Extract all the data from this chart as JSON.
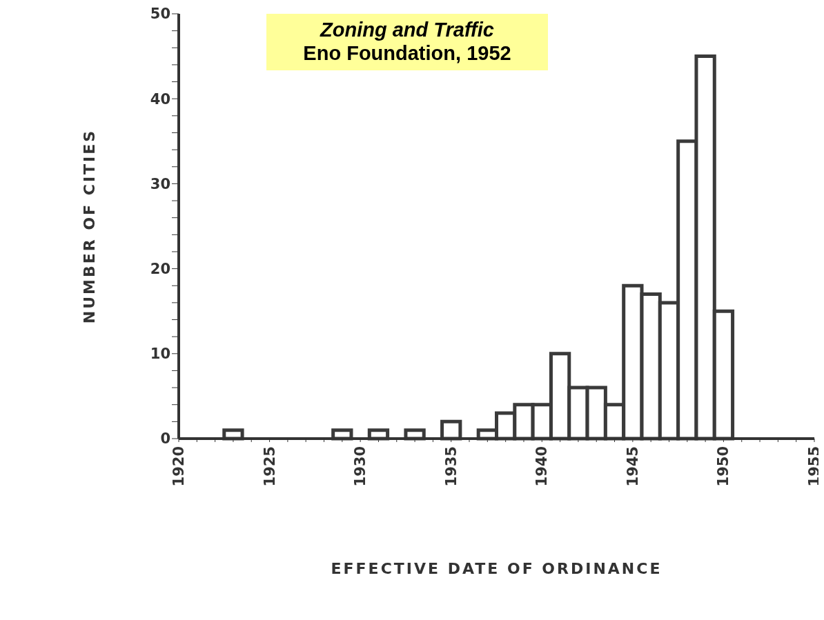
{
  "chart_data": {
    "type": "histogram",
    "title": "Zoning and Traffic",
    "subtitle": "Eno Foundation, 1952",
    "xlabel": "EFFECTIVE DATE OF ORDINANCE",
    "ylabel": "NUMBER OF CITIES",
    "bins": [
      1922.5,
      1923.5,
      1924.5,
      1925.5,
      1926.5,
      1927.5,
      1928.5,
      1929.5,
      1930.5,
      1931.5,
      1932.5,
      1933.5,
      1934.5,
      1935.5,
      1936.5,
      1937.5,
      1938.5,
      1939.5,
      1940.5,
      1941.5,
      1942.5,
      1943.5,
      1944.5,
      1945.5,
      1946.5,
      1947.5,
      1948.5,
      1949.5,
      1950.5
    ],
    "values": [
      1,
      0,
      0,
      0,
      0,
      0,
      1,
      0,
      1,
      0,
      1,
      0,
      2,
      0,
      1,
      3,
      4,
      4,
      10,
      6,
      6,
      4,
      18,
      17,
      16,
      35,
      45,
      15
    ],
    "color": "#3a3a3a",
    "xlim": [
      1920,
      1955
    ],
    "xticks": [
      1920,
      {
        "value": 1921,
        "label": null
      },
      {
        "value": 1922,
        "label": null
      },
      {
        "value": 1923,
        "label": null
      },
      {
        "value": 1924,
        "label": null
      },
      1925,
      {
        "value": 1926,
        "label": null
      },
      {
        "value": 1927,
        "label": null
      },
      {
        "value": 1928,
        "label": null
      },
      {
        "value": 1929,
        "label": null
      },
      1930,
      {
        "value": 1931,
        "label": null
      },
      {
        "value": 1932,
        "label": null
      },
      {
        "value": 1933,
        "label": null
      },
      {
        "value": 1934,
        "label": null
      },
      1935,
      {
        "value": 1936,
        "label": null
      },
      {
        "value": 1937,
        "label": null
      },
      {
        "value": 1938,
        "label": null
      },
      {
        "value": 1939,
        "label": null
      },
      1940,
      {
        "value": 1941,
        "label": null
      },
      {
        "value": 1942,
        "label": null
      },
      {
        "value": 1943,
        "label": null
      },
      {
        "value": 1944,
        "label": null
      },
      1945,
      {
        "value": 1946,
        "label": null
      },
      {
        "value": 1947,
        "label": null
      },
      {
        "value": 1948,
        "label": null
      },
      {
        "value": 1949,
        "label": null
      },
      1950,
      {
        "value": 1951,
        "label": null
      },
      {
        "value": 1952,
        "label": null
      },
      {
        "value": 1953,
        "label": null
      },
      {
        "value": 1954,
        "label": null
      },
      1955
    ],
    "ylim": [
      0,
      50
    ],
    "yticks": [
      0,
      {
        "value": 2,
        "label": null
      },
      {
        "value": 4,
        "label": null
      },
      {
        "value": 6,
        "label": null
      },
      {
        "value": 8,
        "label": null
      },
      10,
      {
        "value": 12,
        "label": null
      },
      {
        "value": 14,
        "label": null
      },
      {
        "value": 16,
        "label": null
      },
      {
        "value": 18,
        "label": null
      },
      20,
      {
        "value": 22,
        "label": null
      },
      {
        "value": 24,
        "label": null
      },
      {
        "value": 26,
        "label": null
      },
      {
        "value": 28,
        "label": null
      },
      30,
      {
        "value": 32,
        "label": null
      },
      {
        "value": 34,
        "label": null
      },
      {
        "value": 36,
        "label": null
      },
      {
        "value": 38,
        "label": null
      },
      40,
      {
        "value": 42,
        "label": null
      },
      {
        "value": 44,
        "label": null
      },
      {
        "value": 46,
        "label": null
      },
      {
        "value": 48,
        "label": null
      },
      50
    ],
    "grid": false
  }
}
